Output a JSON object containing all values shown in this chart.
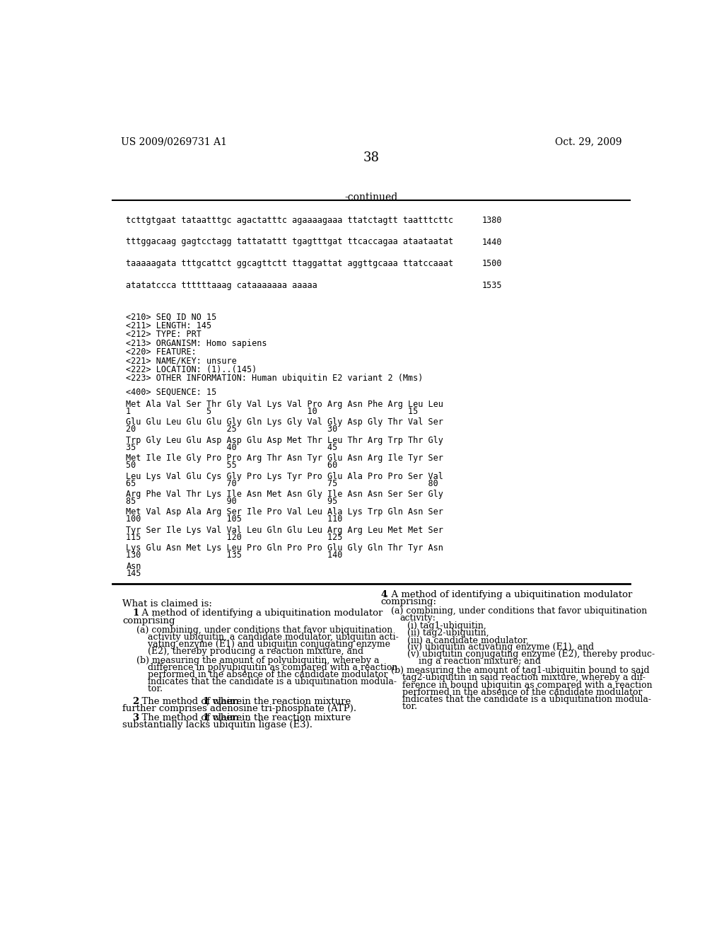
{
  "header_left": "US 2009/0269731 A1",
  "header_right": "Oct. 29, 2009",
  "page_number": "38",
  "continued_label": "-continued",
  "background_color": "#ffffff",
  "text_color": "#000000",
  "monospace_lines": [
    {
      "text": "tcttgtgaat tataatttgc agactatttc agaaaagaaa ttatctagtt taatttcttc",
      "num": "1380"
    },
    {
      "text": "tttggacaag gagtcctagg tattatattt tgagtttgat ttcaccagaa ataataatat",
      "num": "1440"
    },
    {
      "text": "taaaaagata tttgcattct ggcagttctt ttaggattat aggttgcaaa ttatccaaat",
      "num": "1500"
    },
    {
      "text": "atatatccca ttttttaaag cataaaaaaa aaaaa",
      "num": "1535"
    }
  ],
  "seq_info_lines": [
    "<210> SEQ ID NO 15",
    "<211> LENGTH: 145",
    "<212> TYPE: PRT",
    "<213> ORGANISM: Homo sapiens",
    "<220> FEATURE:",
    "<221> NAME/KEY: unsure",
    "<222> LOCATION: (1)..(145)",
    "<223> OTHER INFORMATION: Human ubiquitin E2 variant 2 (Mms)"
  ],
  "seq400_line": "<400> SEQUENCE: 15",
  "sequence_rows": [
    {
      "seq": "Met Ala Val Ser Thr Gly Val Lys Val Pro Arg Asn Phe Arg Leu Leu",
      "nums": "1               5                   10                  15"
    },
    {
      "seq": "Glu Glu Leu Glu Glu Gly Gln Lys Gly Val Gly Asp Gly Thr Val Ser",
      "nums": "20                  25                  30"
    },
    {
      "seq": "Trp Gly Leu Glu Asp Asp Glu Asp Met Thr Leu Thr Arg Trp Thr Gly",
      "nums": "35                  40                  45"
    },
    {
      "seq": "Met Ile Ile Gly Pro Pro Arg Thr Asn Tyr Glu Asn Arg Ile Tyr Ser",
      "nums": "50                  55                  60"
    },
    {
      "seq": "Leu Lys Val Glu Cys Gly Pro Lys Tyr Pro Glu Ala Pro Pro Ser Val",
      "nums": "65                  70                  75                  80"
    },
    {
      "seq": "Arg Phe Val Thr Lys Ile Asn Met Asn Gly Ile Asn Asn Ser Ser Gly",
      "nums": "85                  90                  95"
    },
    {
      "seq": "Met Val Asp Ala Arg Ser Ile Pro Val Leu Ala Lys Trp Gln Asn Ser",
      "nums": "100                 105                 110"
    },
    {
      "seq": "Tyr Ser Ile Lys Val Val Leu Gln Glu Leu Arg Arg Leu Met Met Ser",
      "nums": "115                 120                 125"
    },
    {
      "seq": "Lys Glu Asn Met Lys Leu Pro Gln Pro Pro Glu Gly Gln Thr Tyr Asn",
      "nums": "130                 135                 140"
    },
    {
      "seq": "Asn",
      "nums": "145"
    }
  ]
}
